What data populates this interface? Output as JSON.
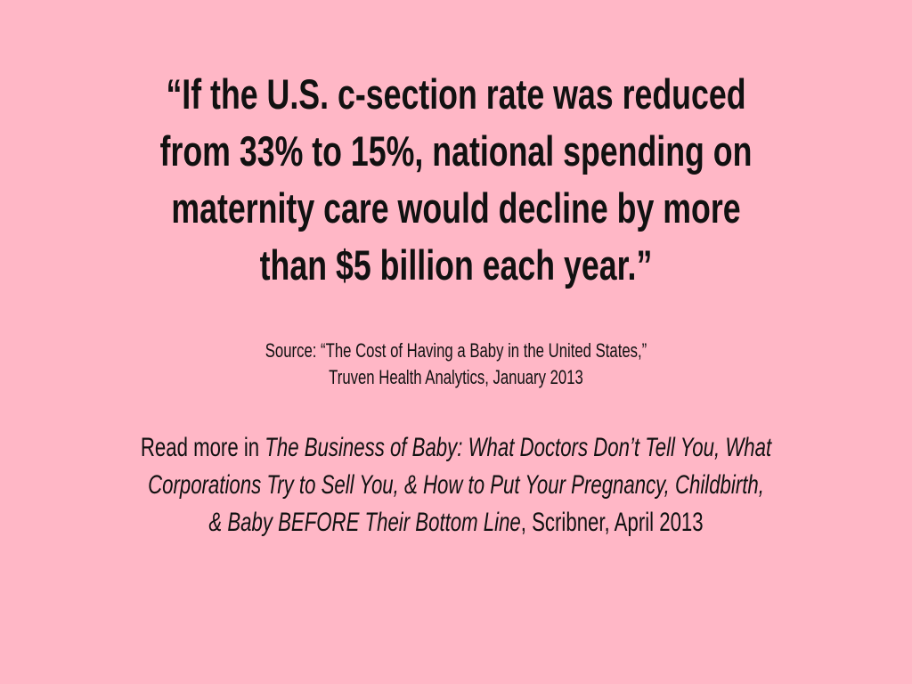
{
  "quote": {
    "lines": [
      "“If the U.S. c-section rate was reduced",
      "from 33% to 15%, national spending on",
      "maternity care would decline by more",
      "than $5 billion each year.”"
    ]
  },
  "source": {
    "lines": [
      "Source: “The Cost of Having a Baby in the United States,”",
      "Truven Health Analytics, January 2013"
    ]
  },
  "read_more": {
    "lines": [
      [
        {
          "text": "Read more in ",
          "italic": false
        },
        {
          "text": "The Business of Baby: What Doctors Don’t Tell You, What",
          "italic": true
        }
      ],
      [
        {
          "text": "Corporations Try to Sell You, & How to Put Your Pregnancy, Childbirth,",
          "italic": true
        }
      ],
      [
        {
          "text": "& Baby BEFORE Their Bottom Line",
          "italic": true
        },
        {
          "text": ", Scribner, April 2013",
          "italic": false
        }
      ]
    ]
  }
}
